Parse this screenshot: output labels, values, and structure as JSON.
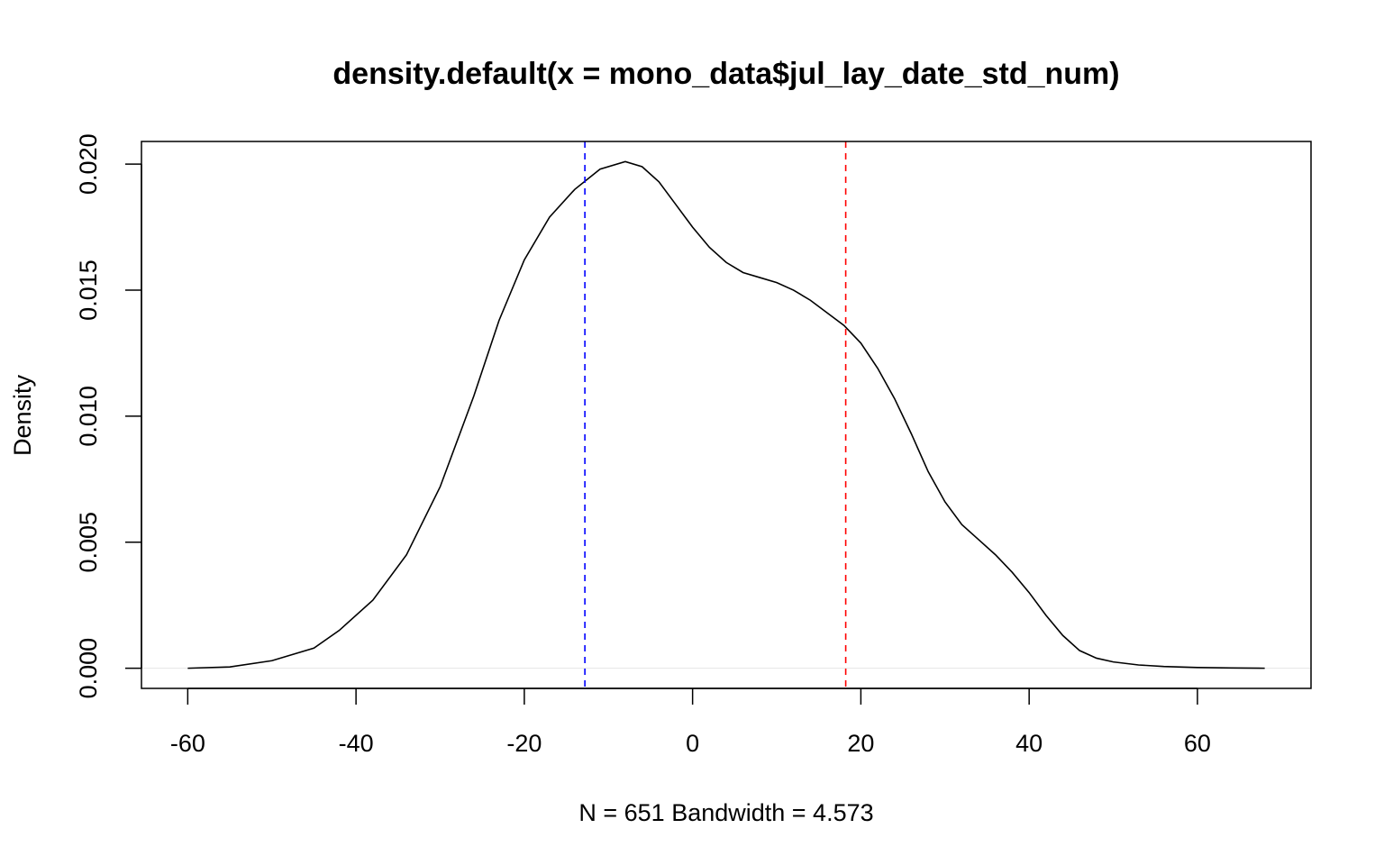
{
  "chart_data": {
    "type": "line",
    "title": "density.default(x = mono_data$jul_lay_date_std_num)",
    "xlabel": "N = 651   Bandwidth = 4.573",
    "ylabel": "Density",
    "xlim": [
      -65.5,
      73.5
    ],
    "ylim": [
      -0.0008,
      0.0209
    ],
    "x_ticks": [
      -60,
      -40,
      -20,
      0,
      20,
      40,
      60
    ],
    "x_tick_labels": [
      "-60",
      "-40",
      "-20",
      "0",
      "20",
      "40",
      "60"
    ],
    "y_ticks": [
      0.0,
      0.005,
      0.01,
      0.015,
      0.02
    ],
    "y_tick_labels": [
      "0.000",
      "0.005",
      "0.010",
      "0.015",
      "0.020"
    ],
    "grid": false,
    "zero_line": true,
    "series": [
      {
        "color": "#000000",
        "x": [
          -60,
          -55,
          -50,
          -45,
          -42,
          -38,
          -34,
          -30,
          -26,
          -23,
          -20,
          -17,
          -14,
          -11,
          -8,
          -6,
          -4,
          -2,
          0,
          2,
          4,
          6,
          8,
          10,
          12,
          14,
          16,
          18,
          20,
          22,
          24,
          26,
          28,
          30,
          32,
          34,
          36,
          38,
          40,
          42,
          44,
          46,
          48,
          50,
          53,
          56,
          60,
          64,
          68
        ],
        "y": [
          0.0,
          5e-05,
          0.0003,
          0.0008,
          0.0015,
          0.0027,
          0.0045,
          0.0072,
          0.0108,
          0.0138,
          0.0162,
          0.0179,
          0.019,
          0.0198,
          0.0201,
          0.0199,
          0.0193,
          0.0184,
          0.0175,
          0.0167,
          0.0161,
          0.0157,
          0.0155,
          0.0153,
          0.015,
          0.0146,
          0.0141,
          0.0136,
          0.0129,
          0.0119,
          0.0107,
          0.0093,
          0.0078,
          0.0066,
          0.0057,
          0.0051,
          0.0045,
          0.0038,
          0.003,
          0.0021,
          0.0013,
          0.0007,
          0.0004,
          0.00025,
          0.00013,
          7e-05,
          3e-05,
          1e-05,
          0.0
        ]
      }
    ],
    "vlines": [
      {
        "x": -12.8,
        "color": "#0000ff",
        "style": "dashed"
      },
      {
        "x": 18.2,
        "color": "#ff0000",
        "style": "dashed"
      }
    ]
  }
}
